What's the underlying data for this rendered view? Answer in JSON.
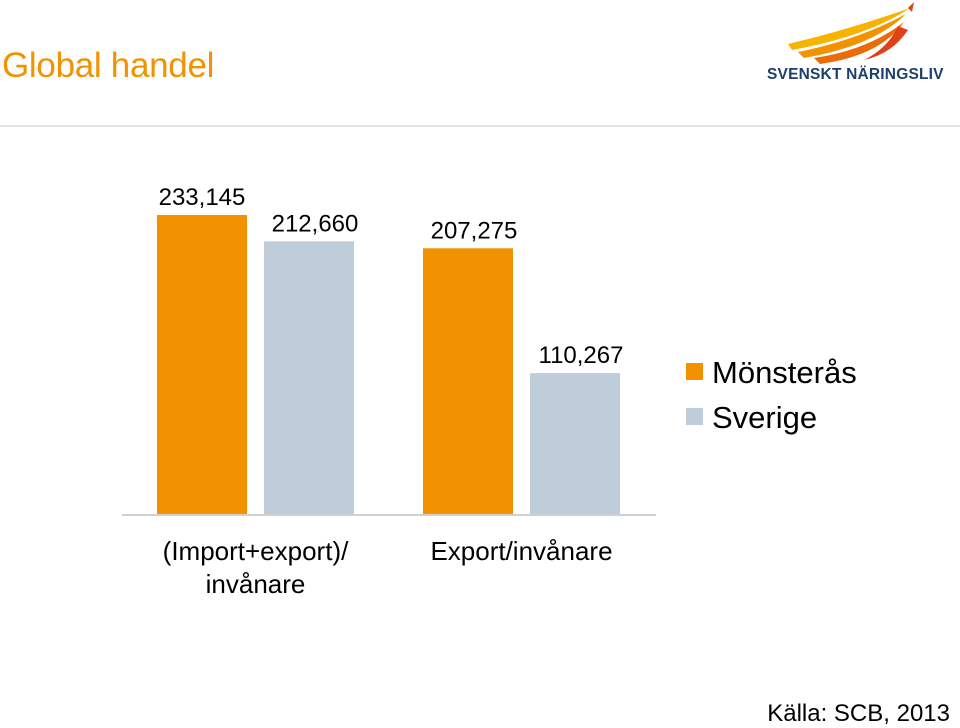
{
  "header": {
    "title": "Global handel",
    "logo_text": "SVENSKT NÄRINGSLIV"
  },
  "footer": {
    "source": "Källa: SCB, 2013"
  },
  "colors": {
    "title": "#f39200",
    "series_1": "#f39200",
    "series_2": "#bfcdda",
    "axis": "#d0d0d0"
  },
  "chart_data": {
    "type": "bar",
    "categories": [
      "(Import+export)/\ninvånare",
      "Export/invånare"
    ],
    "series": [
      {
        "name": "Mönsterås",
        "values": [
          233145,
          207275
        ],
        "labels": [
          "233,145",
          "207,275"
        ],
        "color": "#f39200"
      },
      {
        "name": "Sverige",
        "values": [
          212660,
          110267
        ],
        "labels": [
          "212,660",
          "110,267"
        ],
        "color": "#bfcdda"
      }
    ],
    "ylim": [
      0,
      233145
    ],
    "grid": false,
    "legend": "right"
  }
}
